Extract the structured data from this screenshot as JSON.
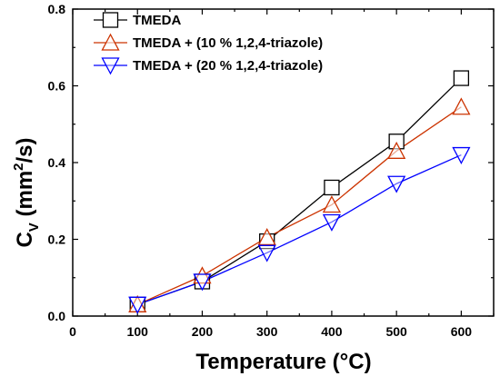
{
  "chart_data": {
    "type": "line",
    "title": "",
    "xlabel": "Temperature (°C)",
    "ylabel": {
      "main": "C",
      "sub": "V",
      "unit_prefix": " (mm",
      "unit_sup": "2",
      "unit_suffix": "/s)"
    },
    "xlim": [
      0,
      650
    ],
    "ylim": [
      0,
      0.8
    ],
    "xticks": [
      0,
      100,
      200,
      300,
      400,
      500,
      600
    ],
    "yticks": [
      0.0,
      0.2,
      0.4,
      0.6,
      0.8
    ],
    "xtick_labels": [
      "0",
      "100",
      "200",
      "300",
      "400",
      "500",
      "600"
    ],
    "ytick_labels": [
      "0.0",
      "0.2",
      "0.4",
      "0.6",
      "0.8"
    ],
    "grid": false,
    "legend_position": "top-left",
    "x": [
      100,
      200,
      300,
      400,
      500,
      600
    ],
    "series": [
      {
        "name": "TMEDA",
        "values": [
          0.03,
          0.09,
          0.195,
          0.335,
          0.455,
          0.62
        ],
        "marker": "square",
        "color": "#000000"
      },
      {
        "name": "TMEDA + (10 % 1,2,4-triazole)",
        "values": [
          0.03,
          0.105,
          0.205,
          0.29,
          0.43,
          0.545
        ],
        "marker": "triangle-up",
        "color": "#cc3300"
      },
      {
        "name": "TMEDA + (20 % 1,2,4-triazole)",
        "values": [
          0.03,
          0.09,
          0.165,
          0.245,
          0.345,
          0.42
        ],
        "marker": "triangle-down",
        "color": "#0000ff"
      }
    ]
  }
}
